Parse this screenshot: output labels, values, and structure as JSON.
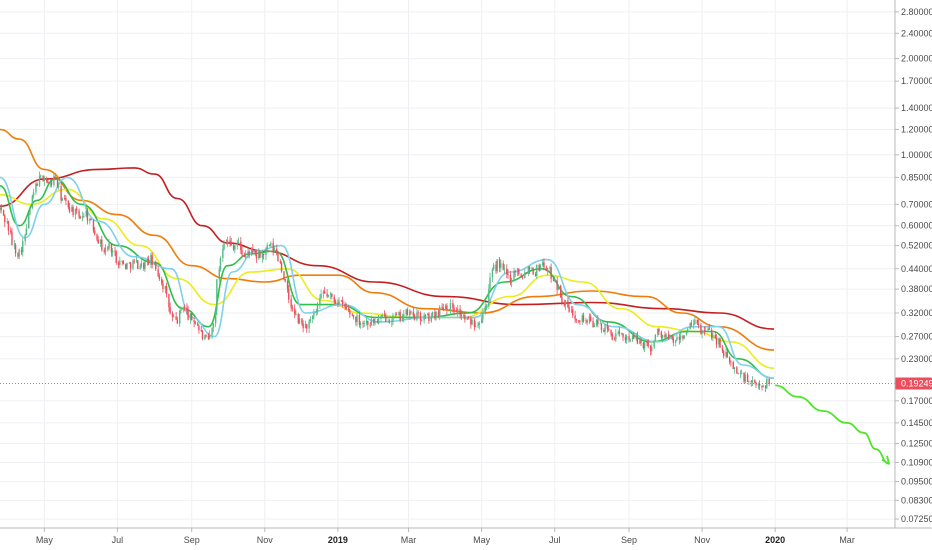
{
  "chart_data": {
    "type": "candlestick",
    "y_scale": "log",
    "ylim": [
      0.068,
      3.05
    ],
    "xlim": [
      "2018-03-25",
      "2020-04-10"
    ],
    "x_ticks": [
      {
        "date": "2018-05-01",
        "label": "May",
        "bold": false
      },
      {
        "date": "2018-07-01",
        "label": "Jul",
        "bold": false
      },
      {
        "date": "2018-09-01",
        "label": "Sep",
        "bold": false
      },
      {
        "date": "2018-11-01",
        "label": "Nov",
        "bold": false
      },
      {
        "date": "2019-01-01",
        "label": "2019",
        "bold": true
      },
      {
        "date": "2019-03-01",
        "label": "Mar",
        "bold": false
      },
      {
        "date": "2019-05-01",
        "label": "May",
        "bold": false
      },
      {
        "date": "2019-07-01",
        "label": "Jul",
        "bold": false
      },
      {
        "date": "2019-09-01",
        "label": "Sep",
        "bold": false
      },
      {
        "date": "2019-11-01",
        "label": "Nov",
        "bold": false
      },
      {
        "date": "2020-01-01",
        "label": "2020",
        "bold": true
      },
      {
        "date": "2020-03-01",
        "label": "Mar",
        "bold": false
      }
    ],
    "y_ticks": [
      {
        "value": 2.8,
        "label": "2.80000"
      },
      {
        "value": 2.4,
        "label": "2.40000"
      },
      {
        "value": 2.0,
        "label": "2.00000"
      },
      {
        "value": 1.7,
        "label": "1.70000"
      },
      {
        "value": 1.4,
        "label": "1.40000"
      },
      {
        "value": 1.2,
        "label": "1.20000"
      },
      {
        "value": 1.0,
        "label": "1.00000"
      },
      {
        "value": 0.85,
        "label": "0.85000"
      },
      {
        "value": 0.7,
        "label": "0.70000"
      },
      {
        "value": 0.6,
        "label": "0.60000"
      },
      {
        "value": 0.52,
        "label": "0.52000"
      },
      {
        "value": 0.44,
        "label": "0.44000"
      },
      {
        "value": 0.38,
        "label": "0.38000"
      },
      {
        "value": 0.32,
        "label": "0.32000"
      },
      {
        "value": 0.27,
        "label": "0.27000"
      },
      {
        "value": 0.23,
        "label": "0.23000"
      },
      {
        "value": 0.17,
        "label": "0.17000"
      },
      {
        "value": 0.145,
        "label": "0.14500"
      },
      {
        "value": 0.125,
        "label": "0.12500"
      },
      {
        "value": 0.109,
        "label": "0.10900"
      },
      {
        "value": 0.095,
        "label": "0.09500"
      },
      {
        "value": 0.083,
        "label": "0.08300"
      },
      {
        "value": 0.0725,
        "label": "0.07250"
      }
    ],
    "last_price": {
      "value": 0.19249,
      "label": "0.19249"
    },
    "price_path": [
      [
        "2018-03-25",
        0.68
      ],
      [
        "2018-04-01",
        0.6
      ],
      [
        "2018-04-05",
        0.52
      ],
      [
        "2018-04-10",
        0.49
      ],
      [
        "2018-04-15",
        0.55
      ],
      [
        "2018-04-20",
        0.7
      ],
      [
        "2018-04-25",
        0.82
      ],
      [
        "2018-05-01",
        0.86
      ],
      [
        "2018-05-05",
        0.8
      ],
      [
        "2018-05-10",
        0.85
      ],
      [
        "2018-05-15",
        0.74
      ],
      [
        "2018-05-20",
        0.7
      ],
      [
        "2018-05-25",
        0.67
      ],
      [
        "2018-05-30",
        0.64
      ],
      [
        "2018-06-05",
        0.66
      ],
      [
        "2018-06-10",
        0.6
      ],
      [
        "2018-06-15",
        0.55
      ],
      [
        "2018-06-20",
        0.5
      ],
      [
        "2018-06-25",
        0.52
      ],
      [
        "2018-07-01",
        0.47
      ],
      [
        "2018-07-08",
        0.45
      ],
      [
        "2018-07-15",
        0.46
      ],
      [
        "2018-07-22",
        0.45
      ],
      [
        "2018-07-29",
        0.47
      ],
      [
        "2018-08-05",
        0.42
      ],
      [
        "2018-08-10",
        0.38
      ],
      [
        "2018-08-15",
        0.31
      ],
      [
        "2018-08-20",
        0.3
      ],
      [
        "2018-08-25",
        0.34
      ],
      [
        "2018-08-30",
        0.31
      ],
      [
        "2018-09-05",
        0.3
      ],
      [
        "2018-09-10",
        0.27
      ],
      [
        "2018-09-15",
        0.26
      ],
      [
        "2018-09-20",
        0.3
      ],
      [
        "2018-09-23",
        0.42
      ],
      [
        "2018-09-28",
        0.55
      ],
      [
        "2018-10-05",
        0.52
      ],
      [
        "2018-10-10",
        0.53
      ],
      [
        "2018-10-15",
        0.48
      ],
      [
        "2018-10-20",
        0.5
      ],
      [
        "2018-10-25",
        0.48
      ],
      [
        "2018-11-01",
        0.49
      ],
      [
        "2018-11-05",
        0.52
      ],
      [
        "2018-11-10",
        0.5
      ],
      [
        "2018-11-15",
        0.45
      ],
      [
        "2018-11-20",
        0.37
      ],
      [
        "2018-11-25",
        0.32
      ],
      [
        "2018-11-30",
        0.3
      ],
      [
        "2018-12-05",
        0.29
      ],
      [
        "2018-12-10",
        0.3
      ],
      [
        "2018-12-15",
        0.33
      ],
      [
        "2018-12-20",
        0.37
      ],
      [
        "2018-12-25",
        0.36
      ],
      [
        "2019-01-01",
        0.35
      ],
      [
        "2019-01-08",
        0.33
      ],
      [
        "2019-01-15",
        0.31
      ],
      [
        "2019-01-22",
        0.3
      ],
      [
        "2019-02-01",
        0.3
      ],
      [
        "2019-02-10",
        0.31
      ],
      [
        "2019-02-20",
        0.31
      ],
      [
        "2019-03-01",
        0.32
      ],
      [
        "2019-03-10",
        0.31
      ],
      [
        "2019-03-20",
        0.31
      ],
      [
        "2019-04-01",
        0.34
      ],
      [
        "2019-04-10",
        0.33
      ],
      [
        "2019-04-20",
        0.3
      ],
      [
        "2019-04-28",
        0.3
      ],
      [
        "2019-05-05",
        0.34
      ],
      [
        "2019-05-10",
        0.43
      ],
      [
        "2019-05-15",
        0.46
      ],
      [
        "2019-05-20",
        0.43
      ],
      [
        "2019-05-25",
        0.41
      ],
      [
        "2019-05-30",
        0.44
      ],
      [
        "2019-06-05",
        0.42
      ],
      [
        "2019-06-10",
        0.45
      ],
      [
        "2019-06-15",
        0.43
      ],
      [
        "2019-06-20",
        0.46
      ],
      [
        "2019-06-25",
        0.44
      ],
      [
        "2019-07-01",
        0.41
      ],
      [
        "2019-07-08",
        0.35
      ],
      [
        "2019-07-15",
        0.32
      ],
      [
        "2019-07-22",
        0.31
      ],
      [
        "2019-08-01",
        0.3
      ],
      [
        "2019-08-10",
        0.29
      ],
      [
        "2019-08-20",
        0.27
      ],
      [
        "2019-09-01",
        0.27
      ],
      [
        "2019-09-10",
        0.26
      ],
      [
        "2019-09-20",
        0.25
      ],
      [
        "2019-09-25",
        0.28
      ],
      [
        "2019-10-01",
        0.27
      ],
      [
        "2019-10-10",
        0.26
      ],
      [
        "2019-10-20",
        0.28
      ],
      [
        "2019-10-25",
        0.3
      ],
      [
        "2019-11-01",
        0.28
      ],
      [
        "2019-11-08",
        0.28
      ],
      [
        "2019-11-15",
        0.26
      ],
      [
        "2019-11-22",
        0.23
      ],
      [
        "2019-11-30",
        0.21
      ],
      [
        "2019-12-07",
        0.2
      ],
      [
        "2019-12-14",
        0.19
      ],
      [
        "2019-12-20",
        0.19
      ],
      [
        "2019-12-28",
        0.195
      ]
    ],
    "series": [
      {
        "color": "#c41e1e",
        "values": [
          [
            "2018-03-25",
            0.69
          ],
          [
            "2018-05-01",
            0.84
          ],
          [
            "2018-06-15",
            0.9
          ],
          [
            "2018-07-15",
            0.91
          ],
          [
            "2018-08-01",
            0.87
          ],
          [
            "2018-08-20",
            0.73
          ],
          [
            "2018-09-10",
            0.6
          ],
          [
            "2018-10-01",
            0.53
          ],
          [
            "2018-11-01",
            0.5
          ],
          [
            "2018-12-15",
            0.45
          ],
          [
            "2019-02-01",
            0.4
          ],
          [
            "2019-04-01",
            0.36
          ],
          [
            "2019-06-01",
            0.34
          ],
          [
            "2019-08-01",
            0.345
          ],
          [
            "2019-10-01",
            0.33
          ],
          [
            "2019-11-15",
            0.32
          ],
          [
            "2019-12-31",
            0.285
          ]
        ]
      },
      {
        "color": "#f07c0a",
        "values": [
          [
            "2018-03-25",
            1.2
          ],
          [
            "2018-04-10",
            1.12
          ],
          [
            "2018-05-01",
            0.9
          ],
          [
            "2018-06-01",
            0.72
          ],
          [
            "2018-07-01",
            0.65
          ],
          [
            "2018-08-01",
            0.56
          ],
          [
            "2018-09-01",
            0.45
          ],
          [
            "2018-10-01",
            0.41
          ],
          [
            "2018-11-01",
            0.4
          ],
          [
            "2018-12-01",
            0.42
          ],
          [
            "2019-01-01",
            0.42
          ],
          [
            "2019-02-01",
            0.37
          ],
          [
            "2019-03-15",
            0.33
          ],
          [
            "2019-05-01",
            0.32
          ],
          [
            "2019-06-15",
            0.36
          ],
          [
            "2019-08-01",
            0.375
          ],
          [
            "2019-09-15",
            0.36
          ],
          [
            "2019-10-15",
            0.32
          ],
          [
            "2019-11-15",
            0.29
          ],
          [
            "2019-12-31",
            0.245
          ]
        ]
      },
      {
        "color": "#ecec1a",
        "values": [
          [
            "2018-03-25",
            0.75
          ],
          [
            "2018-04-20",
            0.7
          ],
          [
            "2018-05-20",
            0.78
          ],
          [
            "2018-06-20",
            0.63
          ],
          [
            "2018-07-20",
            0.52
          ],
          [
            "2018-08-20",
            0.41
          ],
          [
            "2018-09-20",
            0.34
          ],
          [
            "2018-10-20",
            0.43
          ],
          [
            "2018-11-20",
            0.44
          ],
          [
            "2018-12-20",
            0.35
          ],
          [
            "2019-01-20",
            0.32
          ],
          [
            "2019-03-01",
            0.31
          ],
          [
            "2019-04-15",
            0.31
          ],
          [
            "2019-05-25",
            0.36
          ],
          [
            "2019-06-25",
            0.42
          ],
          [
            "2019-07-25",
            0.4
          ],
          [
            "2019-08-25",
            0.33
          ],
          [
            "2019-09-25",
            0.29
          ],
          [
            "2019-10-25",
            0.28
          ],
          [
            "2019-11-25",
            0.26
          ],
          [
            "2019-12-31",
            0.215
          ]
        ]
      },
      {
        "color": "#2fbf4a",
        "values": [
          [
            "2018-03-25",
            0.8
          ],
          [
            "2018-04-10",
            0.6
          ],
          [
            "2018-04-25",
            0.72
          ],
          [
            "2018-05-10",
            0.84
          ],
          [
            "2018-06-01",
            0.7
          ],
          [
            "2018-07-01",
            0.52
          ],
          [
            "2018-08-01",
            0.46
          ],
          [
            "2018-08-25",
            0.33
          ],
          [
            "2018-09-15",
            0.29
          ],
          [
            "2018-10-01",
            0.45
          ],
          [
            "2018-10-20",
            0.49
          ],
          [
            "2018-11-10",
            0.5
          ],
          [
            "2018-12-01",
            0.34
          ],
          [
            "2019-01-01",
            0.34
          ],
          [
            "2019-02-01",
            0.31
          ],
          [
            "2019-03-15",
            0.31
          ],
          [
            "2019-04-20",
            0.32
          ],
          [
            "2019-05-20",
            0.4
          ],
          [
            "2019-06-20",
            0.44
          ],
          [
            "2019-07-15",
            0.36
          ],
          [
            "2019-08-15",
            0.3
          ],
          [
            "2019-09-20",
            0.26
          ],
          [
            "2019-10-20",
            0.28
          ],
          [
            "2019-11-10",
            0.28
          ],
          [
            "2019-12-01",
            0.23
          ],
          [
            "2019-12-31",
            0.2
          ]
        ]
      },
      {
        "color": "#7fd0ee",
        "values": [
          [
            "2018-03-25",
            0.85
          ],
          [
            "2018-04-15",
            0.55
          ],
          [
            "2018-05-01",
            0.7
          ],
          [
            "2018-05-20",
            0.85
          ],
          [
            "2018-06-15",
            0.62
          ],
          [
            "2018-07-15",
            0.48
          ],
          [
            "2018-08-15",
            0.44
          ],
          [
            "2018-09-01",
            0.31
          ],
          [
            "2018-09-20",
            0.27
          ],
          [
            "2018-10-05",
            0.43
          ],
          [
            "2018-10-25",
            0.5
          ],
          [
            "2018-11-15",
            0.52
          ],
          [
            "2018-12-05",
            0.32
          ],
          [
            "2019-01-05",
            0.34
          ],
          [
            "2019-02-05",
            0.3
          ],
          [
            "2019-03-20",
            0.31
          ],
          [
            "2019-04-25",
            0.31
          ],
          [
            "2019-05-25",
            0.43
          ],
          [
            "2019-06-25",
            0.47
          ],
          [
            "2019-07-20",
            0.34
          ],
          [
            "2019-08-20",
            0.29
          ],
          [
            "2019-09-25",
            0.26
          ],
          [
            "2019-10-25",
            0.29
          ],
          [
            "2019-11-15",
            0.29
          ],
          [
            "2019-12-05",
            0.22
          ],
          [
            "2019-12-31",
            0.2
          ]
        ]
      }
    ],
    "projection": {
      "color": "#4fe62a",
      "values": [
        [
          "2020-01-01",
          0.19
        ],
        [
          "2020-01-20",
          0.175
        ],
        [
          "2020-02-10",
          0.158
        ],
        [
          "2020-03-01",
          0.145
        ],
        [
          "2020-03-15",
          0.135
        ],
        [
          "2020-03-25",
          0.12
        ],
        [
          "2020-04-05",
          0.108
        ]
      ]
    },
    "grid": true,
    "title": "",
    "xlabel": "",
    "ylabel": ""
  }
}
